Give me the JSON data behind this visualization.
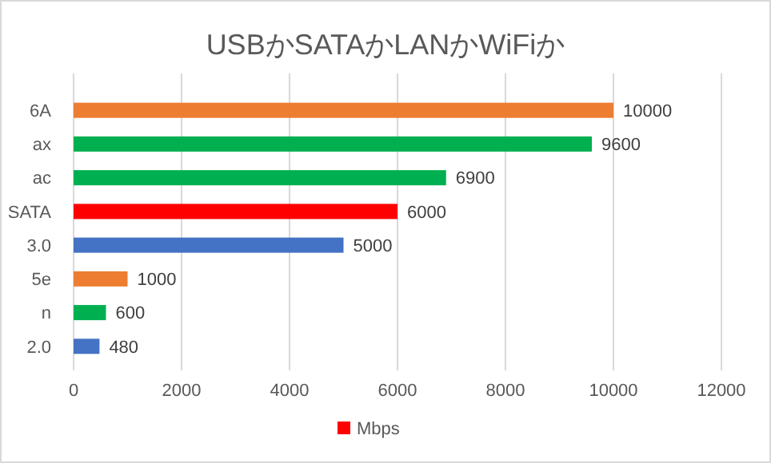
{
  "chart_data": {
    "type": "bar",
    "orientation": "horizontal",
    "title": "USBかSATAかLANかWiFiか",
    "categories": [
      "6A",
      "ax",
      "ac",
      "SATA",
      "3.0",
      "5e",
      "n",
      "2.0"
    ],
    "series": [
      {
        "name": "Mbps",
        "color": "#ff0000",
        "values": [
          10000,
          9600,
          6900,
          6000,
          5000,
          1000,
          600,
          480
        ],
        "colors": [
          "#ed7d31",
          "#00b050",
          "#00b050",
          "#ff0000",
          "#4472c4",
          "#ed7d31",
          "#00b050",
          "#4472c4"
        ]
      }
    ],
    "xlim": [
      0,
      12000
    ],
    "xticks": [
      0,
      2000,
      4000,
      6000,
      8000,
      10000,
      12000
    ],
    "grid": "x",
    "legend": "bottom",
    "data_labels": true
  }
}
